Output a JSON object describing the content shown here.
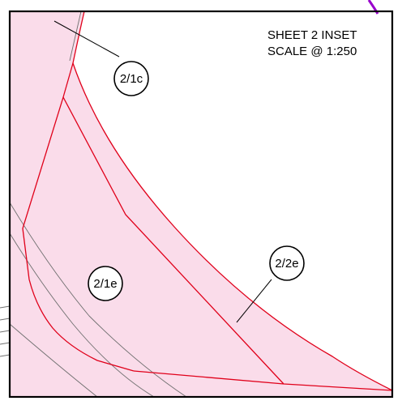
{
  "sheet": {
    "title_line1": "SHEET 2 INSET",
    "title_line2": "SCALE @ 1:250"
  },
  "labels": {
    "parcel_2_1c": "2/1c",
    "parcel_2_1e": "2/1e",
    "parcel_2_2e": "2/2e"
  },
  "colors": {
    "parcel_fill": "#fadcea",
    "parcel_boundary": "#e0001a",
    "frame": "#000000",
    "context_lines": "#707070",
    "feature_highlight": "#9900cc"
  }
}
